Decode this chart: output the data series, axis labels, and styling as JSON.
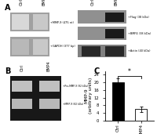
{
  "categories": [
    "Ctrl",
    "BMP4"
  ],
  "values": [
    20,
    6
  ],
  "errors": [
    2.0,
    1.5
  ],
  "bar_colors": [
    "black",
    "white"
  ],
  "bar_edge_colors": [
    "black",
    "black"
  ],
  "ylabel": "MMP-9\n(arbitrary units)",
  "ylim": [
    0,
    26
  ],
  "yticks": [
    0,
    4,
    8,
    12,
    16,
    20,
    24
  ],
  "panel_C_label": "C",
  "panel_A_label": "A",
  "panel_B_label": "B",
  "significance": "*",
  "background_color": "#ffffff",
  "gel_A_bg": "#c0c0c0",
  "gel_A_band1_ctrl": "#b8b8b8",
  "gel_A_band1_bmp4": "#d4d4d4",
  "gel_A_band2_ctrl": "#909090",
  "gel_A_band2_bmp4": "#b0b0b0",
  "wb_bg_flag": "#888888",
  "wb_bg_bmp4r": "#888888",
  "wb_bg_actin": "#888888",
  "wb_flag_ctrl": "#888888",
  "wb_flag_bmp4": "#1a1a1a",
  "wb_bmp4_ctrl": "#888888",
  "wb_bmp4_bmp4": "#1a1a1a",
  "wb_actin_ctrl": "#303030",
  "wb_actin_bmp4": "#282828",
  "gel_B_bg": "#101010",
  "gel_B_band1_ctrl": "#c0c0c0",
  "gel_B_band1_bmp4": "#c0c0c0",
  "gel_B_band2_ctrl": "#c0c0c0",
  "gel_B_band2_bmp4": "#c0c0c0"
}
